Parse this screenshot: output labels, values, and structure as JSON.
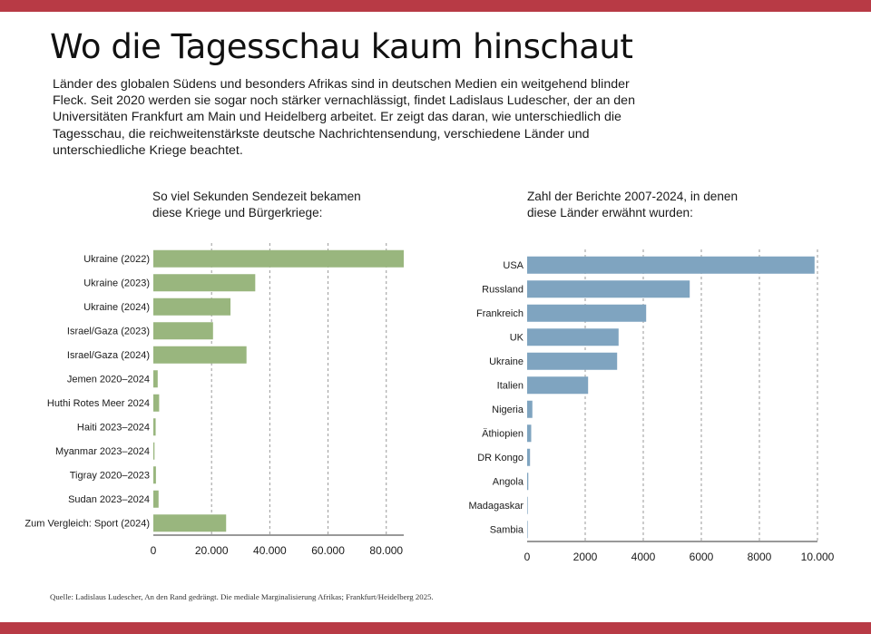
{
  "header": {
    "title": "Wo die Tagesschau kaum hinschaut",
    "intro": "Länder des globalen Südens und besonders Afrikas sind in deutschen Medien ein weitgehend blinder Fleck. Seit 2020 werden sie sogar noch stärker vernachlässigt, findet Ladislaus Ludescher, der an den Universitäten Frankfurt am Main und Heidelberg arbeitet. Er zeigt das daran, wie unterschiedlich die Tagesschau, die reichweitenstärkste deutsche Nachrichtensendung, verschiedene Länder und unterschiedliche Kriege beachtet."
  },
  "footer": {
    "source": "Quelle: Ladislaus Ludescher, An den Rand gedrängt. Die mediale Marginalisierung Afrikas; Frankfurt/Heidelberg 2025."
  },
  "colors": {
    "frame": "#b83a45",
    "green": "#99b67e",
    "blue": "#7fa4c0",
    "grid": "#9a9a9a"
  },
  "chart_data": [
    {
      "type": "bar",
      "orientation": "horizontal",
      "title": "So viel Sekunden Sendezeit bekamen\ndiese Kriege und Bürgerkriege:",
      "categories": [
        "Ukraine (2022)",
        "Ukraine (2023)",
        "Ukraine (2024)",
        "Israel/Gaza (2023)",
        "Israel/Gaza (2024)",
        "Jemen 2020–2024",
        "Huthi Rotes Meer 2024",
        "Haiti 2023–2024",
        "Myanmar 2023–2024",
        "Tigray 2020–2023",
        "Sudan 2023–2024",
        "Zum Vergleich: Sport (2024)"
      ],
      "values": [
        86000,
        35000,
        26500,
        20500,
        32000,
        1500,
        2000,
        800,
        400,
        900,
        1800,
        25000
      ],
      "xlim": [
        0,
        86000
      ],
      "ticks": [
        0,
        20000,
        40000,
        60000,
        80000
      ],
      "tick_labels": [
        "0",
        "20.000",
        "40.000",
        "60.000",
        "80.000"
      ],
      "grid": "vertical dashed",
      "color": "#99b67e"
    },
    {
      "type": "bar",
      "orientation": "horizontal",
      "title": "Zahl der Berichte 2007-2024, in denen\ndiese Länder erwähnt wurden:",
      "categories": [
        "USA",
        "Russland",
        "Frankreich",
        "UK",
        "Ukraine",
        "Italien",
        "Nigeria",
        "Äthiopien",
        "DR Kongo",
        "Angola",
        "Madagaskar",
        "Sambia"
      ],
      "values": [
        9900,
        5600,
        4100,
        3150,
        3100,
        2100,
        180,
        140,
        100,
        40,
        20,
        10
      ],
      "xlim": [
        0,
        10000
      ],
      "ticks": [
        0,
        2000,
        4000,
        6000,
        8000,
        10000
      ],
      "tick_labels": [
        "0",
        "2000",
        "4000",
        "6000",
        "8000",
        "10.000"
      ],
      "grid": "vertical dashed",
      "color": "#7fa4c0"
    }
  ]
}
